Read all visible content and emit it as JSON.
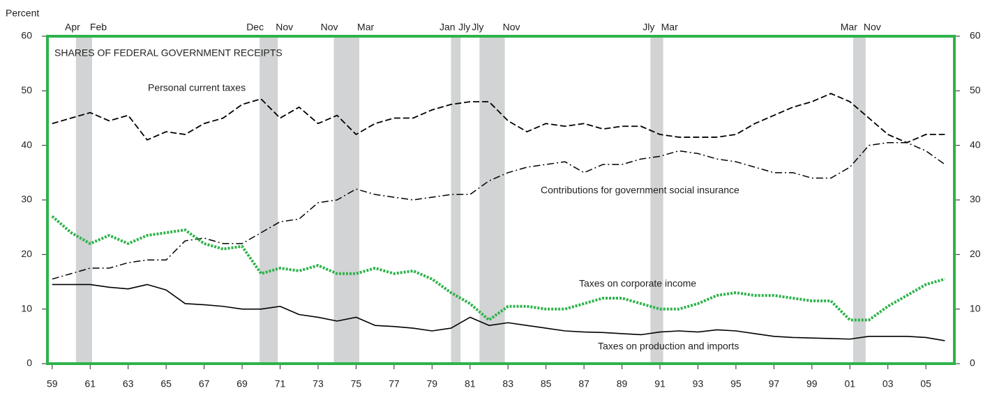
{
  "chart_data": {
    "type": "line",
    "title": "SHARES OF FEDERAL GOVERNMENT RECEIPTS",
    "y_label": "Percent",
    "x": [
      1959,
      1960,
      1961,
      1962,
      1963,
      1964,
      1965,
      1966,
      1967,
      1968,
      1969,
      1970,
      1971,
      1972,
      1973,
      1974,
      1975,
      1976,
      1977,
      1978,
      1979,
      1980,
      1981,
      1982,
      1983,
      1984,
      1985,
      1986,
      1987,
      1988,
      1989,
      1990,
      1991,
      1992,
      1993,
      1994,
      1995,
      1996,
      1997,
      1998,
      1999,
      2000,
      2001,
      2002,
      2003,
      2004,
      2005,
      2006
    ],
    "series": [
      {
        "name": "Personal current taxes",
        "color": "#000000",
        "style": "dashed",
        "values": [
          44,
          45,
          46,
          44.5,
          45.5,
          41,
          42.5,
          42,
          44,
          45,
          47.5,
          48.5,
          45,
          47,
          44,
          45.5,
          42,
          44,
          45,
          45,
          46.5,
          47.5,
          48,
          48,
          44.5,
          42.5,
          44,
          43.5,
          44,
          43,
          43.5,
          43.5,
          42,
          41.5,
          41.5,
          41.5,
          42,
          44,
          45.5,
          47,
          48,
          49.5,
          48,
          45,
          42,
          40.5,
          42,
          42
        ]
      },
      {
        "name": "Contributions for government social insurance",
        "color": "#000000",
        "style": "dashdot",
        "values": [
          15.5,
          16.5,
          17.5,
          17.5,
          18.5,
          19,
          19,
          22.5,
          23,
          22,
          22,
          24,
          26,
          26.5,
          29.5,
          30,
          32,
          31,
          30.5,
          30,
          30.5,
          31,
          31,
          33.5,
          35,
          36,
          36.5,
          37,
          35,
          36.5,
          36.5,
          37.5,
          38,
          39,
          38.5,
          37.5,
          37,
          36,
          35,
          35,
          34,
          34,
          36,
          40,
          40.5,
          40.5,
          39,
          36.5
        ]
      },
      {
        "name": "Taxes on corporate income",
        "color": "#2db34a",
        "style": "dotted",
        "values": [
          27,
          24,
          22,
          23.5,
          22,
          23.5,
          24,
          24.5,
          22,
          21,
          21.5,
          16.5,
          17.5,
          17,
          18,
          16.5,
          16.5,
          17.5,
          16.5,
          17,
          15.5,
          13,
          11,
          8,
          10.5,
          10.5,
          10,
          10,
          11,
          12,
          12,
          11,
          10,
          10,
          11,
          12.5,
          13,
          12.5,
          12.5,
          12,
          11.5,
          11.5,
          8,
          8,
          10.5,
          12.5,
          14.5,
          15.5
        ]
      },
      {
        "name": "Taxes on production and imports",
        "color": "#000000",
        "style": "solid",
        "values": [
          14.5,
          14.5,
          14.5,
          14,
          13.7,
          14.5,
          13.5,
          11,
          10.8,
          10.5,
          10,
          10,
          10.5,
          9,
          8.5,
          7.8,
          8.5,
          7,
          6.8,
          6.5,
          6,
          6.5,
          8.5,
          7,
          7.5,
          7,
          6.5,
          6,
          5.8,
          5.7,
          5.5,
          5.3,
          5.8,
          6,
          5.8,
          6.2,
          6,
          5.5,
          5,
          4.8,
          4.7,
          4.6,
          4.5,
          5,
          5,
          5,
          4.8,
          4.2
        ]
      }
    ],
    "recessions": [
      {
        "start": 1960.25,
        "end": 1961.1,
        "start_label": "Apr",
        "end_label": "Feb"
      },
      {
        "start": 1969.92,
        "end": 1970.88,
        "start_label": "Dec",
        "end_label": "Nov"
      },
      {
        "start": 1973.83,
        "end": 1975.17,
        "start_label": "Nov",
        "end_label": "Mar"
      },
      {
        "start": 1980.0,
        "end": 1980.5,
        "start_label": "Jan",
        "end_label": "Jly"
      },
      {
        "start": 1981.5,
        "end": 1982.83,
        "start_label": "Jly",
        "end_label": "Nov"
      },
      {
        "start": 1990.5,
        "end": 1991.17,
        "start_label": "Jly",
        "end_label": "Mar"
      },
      {
        "start": 2001.17,
        "end": 2001.83,
        "start_label": "Mar",
        "end_label": "Nov"
      }
    ],
    "xlim": [
      1958.75,
      2006.5
    ],
    "xticks": [
      {
        "value": 1959,
        "label": "59"
      },
      {
        "value": 1961,
        "label": "61"
      },
      {
        "value": 1963,
        "label": "63"
      },
      {
        "value": 1965,
        "label": "65"
      },
      {
        "value": 1967,
        "label": "67"
      },
      {
        "value": 1969,
        "label": "69"
      },
      {
        "value": 1971,
        "label": "71"
      },
      {
        "value": 1973,
        "label": "73"
      },
      {
        "value": 1975,
        "label": "75"
      },
      {
        "value": 1977,
        "label": "77"
      },
      {
        "value": 1979,
        "label": "79"
      },
      {
        "value": 1981,
        "label": "81"
      },
      {
        "value": 1983,
        "label": "83"
      },
      {
        "value": 1985,
        "label": "85"
      },
      {
        "value": 1987,
        "label": "87"
      },
      {
        "value": 1989,
        "label": "89"
      },
      {
        "value": 1991,
        "label": "91"
      },
      {
        "value": 1993,
        "label": "93"
      },
      {
        "value": 1995,
        "label": "95"
      },
      {
        "value": 1997,
        "label": "97"
      },
      {
        "value": 1999,
        "label": "99"
      },
      {
        "value": 2001,
        "label": "01"
      },
      {
        "value": 2003,
        "label": "03"
      },
      {
        "value": 2005,
        "label": "05"
      }
    ],
    "ylim": [
      0,
      60
    ],
    "yticks": [
      0,
      10,
      20,
      30,
      40,
      50,
      60
    ],
    "y2lim": [
      0,
      60
    ],
    "y2ticks": [
      0,
      10,
      20,
      30,
      40,
      50,
      60
    ],
    "frame_color": "#2db34a",
    "grid": false
  }
}
